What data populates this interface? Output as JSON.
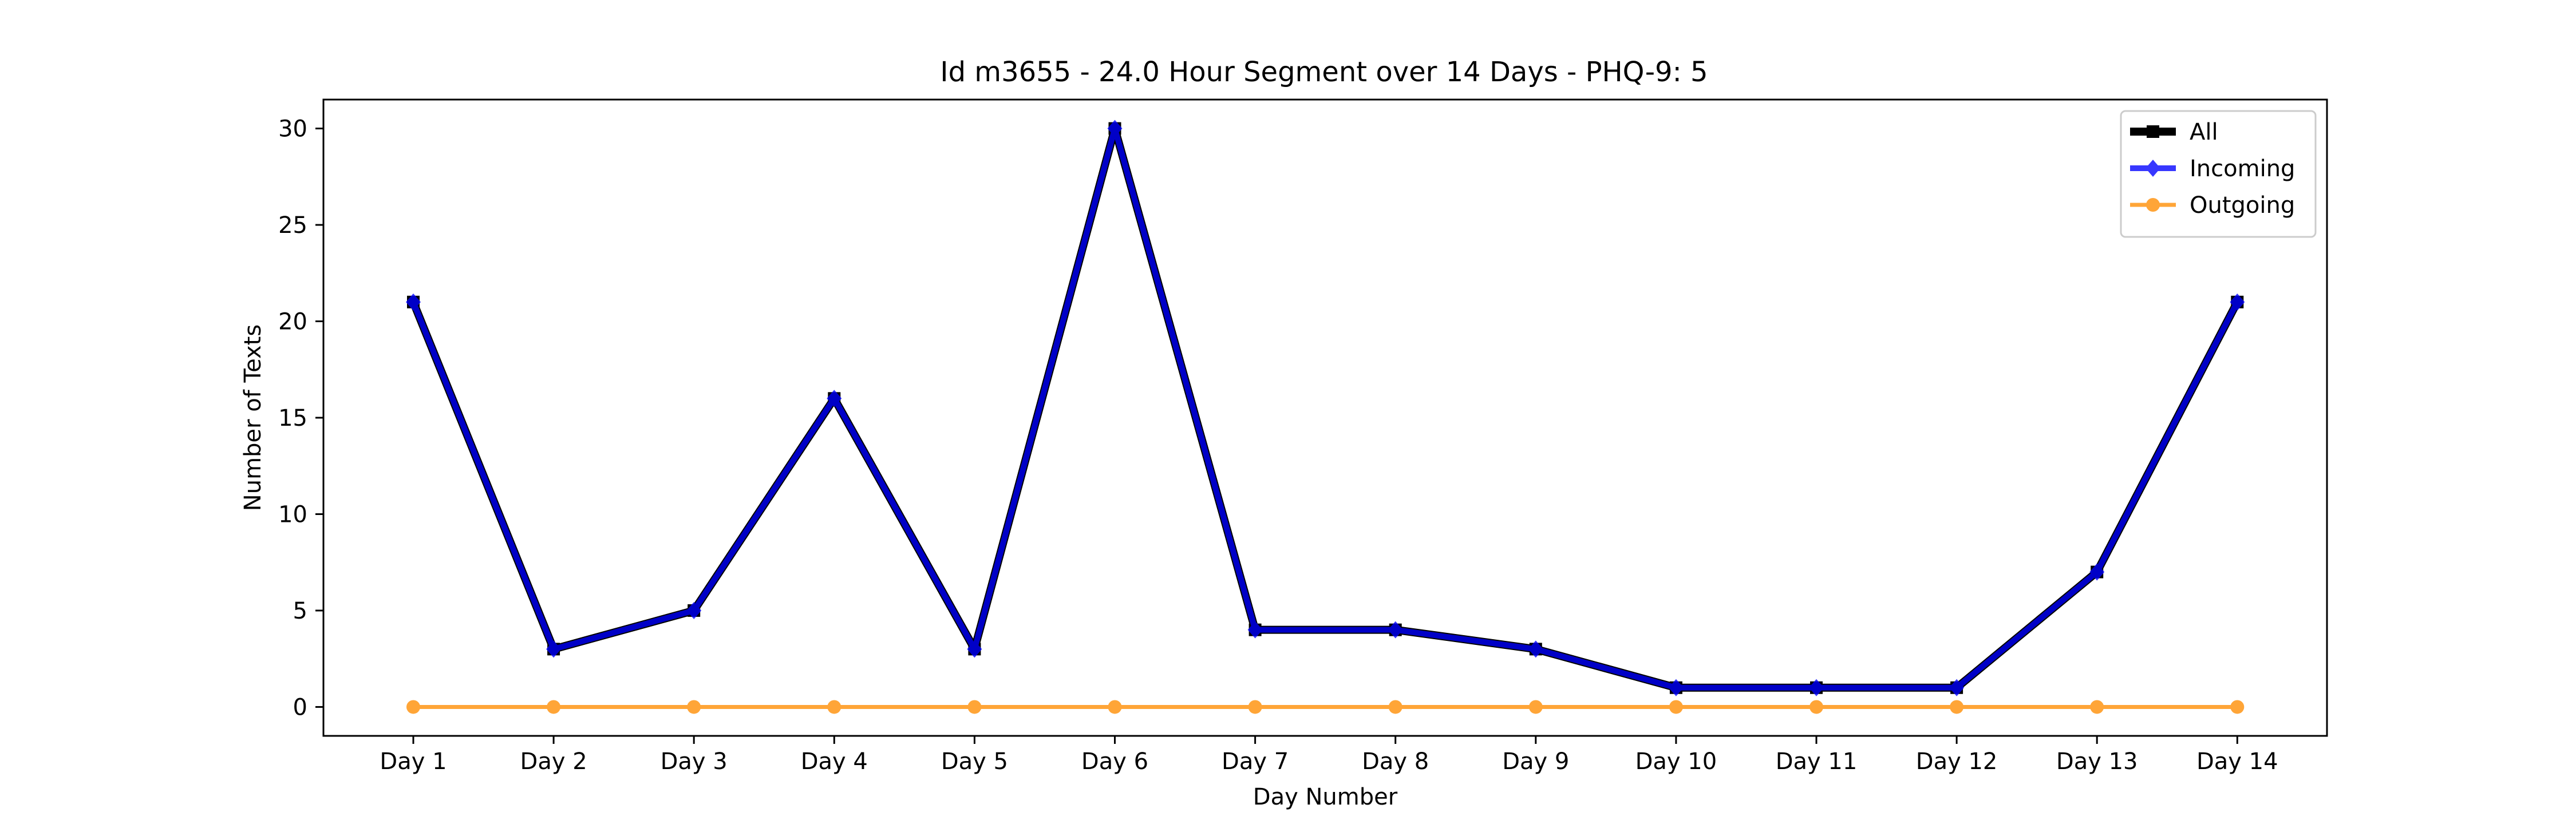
{
  "chart_data": {
    "type": "line",
    "title": "Id m3655 - 24.0 Hour Segment over 14 Days - PHQ-9: 5",
    "xlabel": "Day Number",
    "ylabel": "Number of Texts",
    "categories": [
      "Day 1",
      "Day 2",
      "Day 3",
      "Day 4",
      "Day 5",
      "Day 6",
      "Day 7",
      "Day 8",
      "Day 9",
      "Day 10",
      "Day 11",
      "Day 12",
      "Day 13",
      "Day 14"
    ],
    "ylim": [
      -1.5,
      31.5
    ],
    "yticks": [
      0,
      5,
      10,
      15,
      20,
      25,
      30
    ],
    "grid": false,
    "legend_position": "top-right",
    "series": [
      {
        "name": "All",
        "values": [
          21,
          3,
          5,
          16,
          3,
          30,
          4,
          4,
          3,
          1,
          1,
          1,
          7,
          21
        ],
        "color": "#000000",
        "marker": "square"
      },
      {
        "name": "Incoming",
        "values": [
          21,
          3,
          5,
          16,
          3,
          30,
          4,
          4,
          3,
          1,
          1,
          1,
          7,
          21
        ],
        "color": "#0000ff",
        "marker": "diamond"
      },
      {
        "name": "Outgoing",
        "values": [
          0,
          0,
          0,
          0,
          0,
          0,
          0,
          0,
          0,
          0,
          0,
          0,
          0,
          0
        ],
        "color": "#ff8c00",
        "marker": "circle"
      }
    ]
  }
}
